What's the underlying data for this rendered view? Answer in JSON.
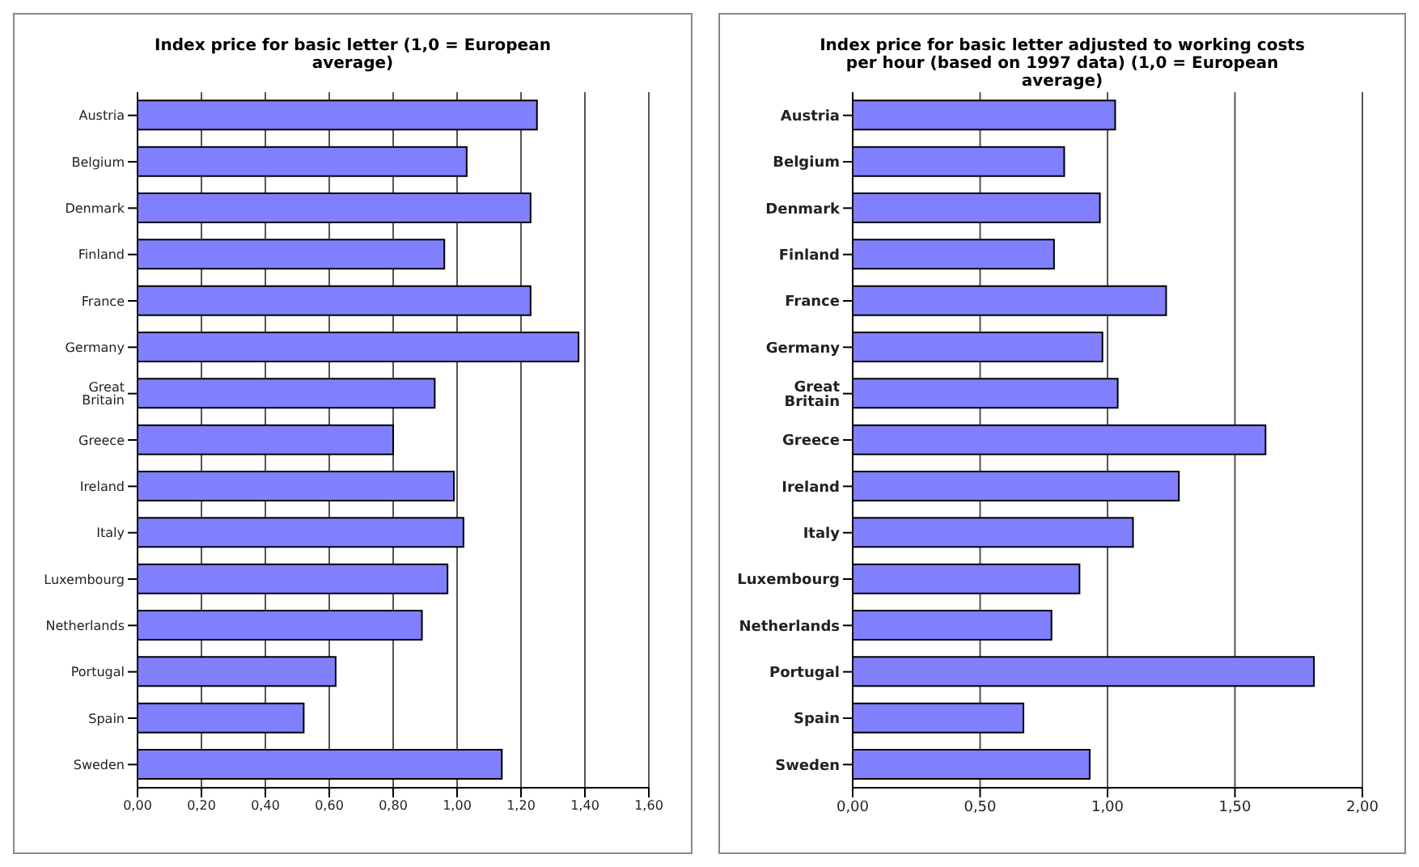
{
  "chart_data": [
    {
      "type": "bar",
      "orientation": "horizontal",
      "title": "Index price for basic letter (1,0 = European average)",
      "categories": [
        "Austria",
        "Belgium",
        "Denmark",
        "Finland",
        "France",
        "Germany",
        "Great Britain",
        "Greece",
        "Ireland",
        "Italy",
        "Luxembourg",
        "Netherlands",
        "Portugal",
        "Spain",
        "Sweden"
      ],
      "values": [
        1.25,
        1.03,
        1.23,
        0.96,
        1.23,
        1.38,
        0.93,
        0.8,
        0.99,
        1.02,
        0.97,
        0.89,
        0.62,
        0.52,
        1.14
      ],
      "color": "#8080ff",
      "xlim": [
        0,
        1.6
      ],
      "xticks": [
        {
          "value": 0,
          "label": "0,00"
        },
        {
          "value": 0.2,
          "label": "0,20"
        },
        {
          "value": 0.4,
          "label": "0,40"
        },
        {
          "value": 0.6,
          "label": "0,60"
        },
        {
          "value": 0.8,
          "label": "0,80"
        },
        {
          "value": 1,
          "label": "1,00"
        },
        {
          "value": 1.2,
          "label": "1,20"
        },
        {
          "value": 1.4,
          "label": "1,40"
        },
        {
          "value": 1.6,
          "label": "1,60"
        }
      ],
      "grid": "x",
      "legend": false
    },
    {
      "type": "bar",
      "orientation": "horizontal",
      "title": "Index price for basic letter adjusted to working costs per hour (based on 1997 data) (1,0 = European average)",
      "categories": [
        "Austria",
        "Belgium",
        "Denmark",
        "Finland",
        "France",
        "Germany",
        "Great Britain",
        "Greece",
        "Ireland",
        "Italy",
        "Luxembourg",
        "Netherlands",
        "Portugal",
        "Spain",
        "Sweden"
      ],
      "values": [
        1.03,
        0.83,
        0.97,
        0.79,
        1.23,
        0.98,
        1.04,
        1.62,
        1.28,
        1.1,
        0.89,
        0.78,
        1.81,
        0.67,
        0.93
      ],
      "color": "#8080ff",
      "xlim": [
        0,
        2
      ],
      "xticks": [
        {
          "value": 0,
          "label": "0,00"
        },
        {
          "value": 0.5,
          "label": "0,50"
        },
        {
          "value": 1,
          "label": "1,00"
        },
        {
          "value": 1.5,
          "label": "1,50"
        },
        {
          "value": 2,
          "label": "2,00"
        }
      ],
      "grid": "x",
      "legend": false
    }
  ]
}
